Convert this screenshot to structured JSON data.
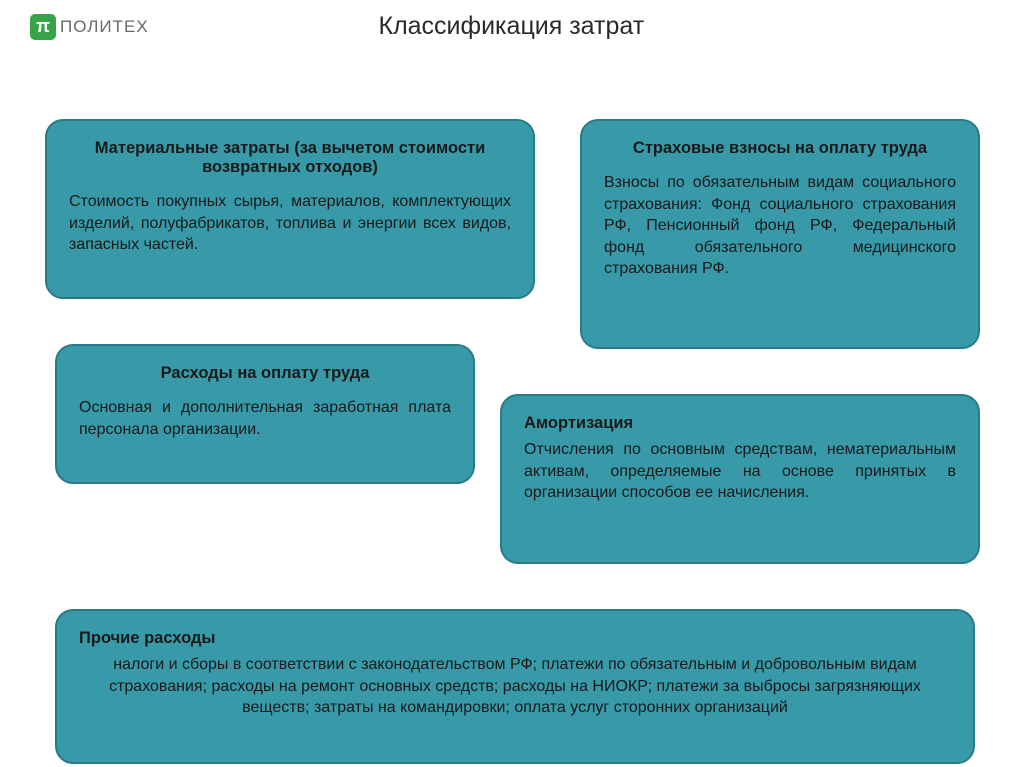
{
  "logo": {
    "symbol": "π",
    "text": "ПОЛИТЕХ"
  },
  "title": "Классификация затрат",
  "colors": {
    "box_fill": "#3899a8",
    "box_border": "#2a7a88",
    "logo_bg": "#37a447",
    "text": "#1a1a1a",
    "page_bg": "#ffffff"
  },
  "boxes": {
    "material": {
      "title": "Материальные затраты (за вычетом стоимости возвратных отходов)",
      "body": "Стоимость покупных сырья, материалов, комплектующих изделий, полуфабрикатов, топлива и энергии всех видов, запасных частей."
    },
    "insurance": {
      "title": "Страховые взносы на оплату труда",
      "body": "Взносы по обязательным видам социального страхования: Фонд социального страхования РФ, Пенсионный фонд РФ, Федеральный фонд обязательного медицинского страхования РФ."
    },
    "labor": {
      "title": "Расходы на оплату труда",
      "body": "Основная и дополнительная заработная плата персонала организации."
    },
    "amortization": {
      "title": "Амортизация",
      "body": "Отчисления по основным средствам, нематериальным активам, определяемые на основе принятых в организации способов ее начисления."
    },
    "other": {
      "title": "Прочие расходы",
      "body": "налоги и сборы в соответствии с законодательством РФ; платежи по обязательным и добровольным видам страхования; расходы на ремонт основных средств; расходы на НИОКР; платежи за выбросы загрязняющих веществ; затраты на командировки; оплата услуг сторонних организаций"
    }
  }
}
